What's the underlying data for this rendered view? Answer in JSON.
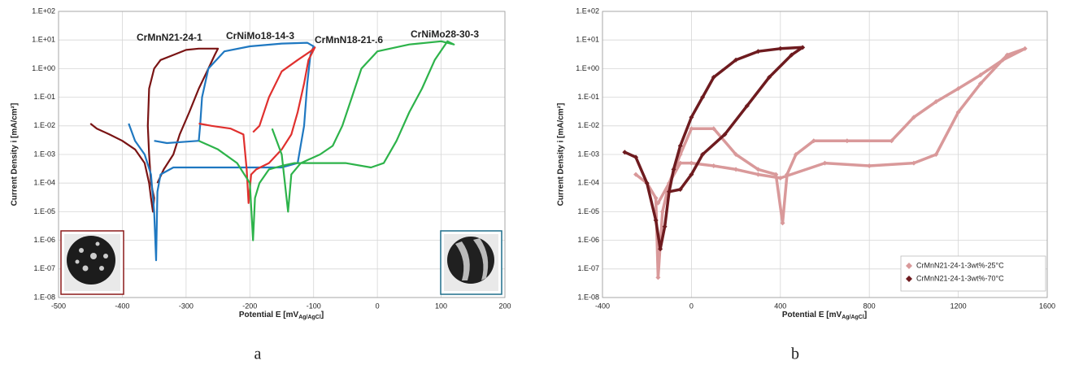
{
  "chart_data": [
    {
      "type": "line",
      "log_y": true,
      "grid": true,
      "caption": "a",
      "x_label": "Potential E [mV",
      "x_label_sub": "Ag/AgCl",
      "x_label_end": "]",
      "y_label": "Current Density i [mA/cm²]",
      "xlim": [
        -500,
        200
      ],
      "xticks": [
        -500,
        -400,
        -300,
        -200,
        -100,
        0,
        100,
        200
      ],
      "ylim": [
        1e-08,
        100
      ],
      "yticks": [
        {
          "value": 1e-08,
          "label": "1.E-08"
        },
        {
          "value": 1e-07,
          "label": "1.E-07"
        },
        {
          "value": 1e-06,
          "label": "1.E-06"
        },
        {
          "value": 1e-05,
          "label": "1.E-05"
        },
        {
          "value": 0.0001,
          "label": "1.E-04"
        },
        {
          "value": 0.001,
          "label": "1.E-03"
        },
        {
          "value": 0.01,
          "label": "1.E-02"
        },
        {
          "value": 0.1,
          "label": "1.E-01"
        },
        {
          "value": 1,
          "label": "1.E+00"
        },
        {
          "value": 10,
          "label": "1.E+01"
        },
        {
          "value": 100,
          "label": "1.E+02"
        }
      ],
      "series": [
        {
          "name": "CrMnN21-24-1",
          "color": "#7a1414",
          "x": [
            -450,
            -440,
            -420,
            -400,
            -380,
            -365,
            -358,
            -355,
            -352,
            -350,
            -355,
            -358,
            -360,
            -358,
            -350,
            -340,
            -320,
            -300,
            -280,
            -260,
            -250,
            -255,
            -265,
            -280,
            -295,
            -310,
            -320,
            -335,
            -345
          ],
          "values": [
            0.012,
            0.008,
            0.005,
            0.003,
            0.0015,
            0.0005,
            0.0001,
            3e-05,
            1e-05,
            3e-05,
            0.0001,
            0.001,
            0.01,
            0.2,
            1,
            2,
            3,
            4.5,
            5,
            5,
            5,
            3,
            1,
            0.2,
            0.03,
            0.005,
            0.001,
            0.0003,
            0.0001
          ]
        },
        {
          "name": "CrNiMo18-14-3",
          "color": "#1f78c1",
          "x": [
            -390,
            -380,
            -365,
            -355,
            -350,
            -347,
            -345,
            -340,
            -320,
            -250,
            -150,
            -125,
            -115,
            -110,
            -105,
            -100,
            -110,
            -150,
            -200,
            -240,
            -265,
            -275,
            -278,
            -280,
            -300,
            -330,
            -350
          ],
          "values": [
            0.012,
            0.003,
            0.001,
            0.0002,
            1e-05,
            2e-07,
            5e-05,
            0.0002,
            0.00035,
            0.00035,
            0.00035,
            0.0005,
            0.01,
            0.3,
            3,
            6,
            8,
            7.5,
            6,
            4,
            1,
            0.1,
            0.01,
            0.003,
            0.0028,
            0.0025,
            0.003
          ]
        },
        {
          "name": "CrMnN18-21-.6",
          "color": "#e0302e",
          "x": [
            -280,
            -260,
            -230,
            -210,
            -205,
            -202,
            -198,
            -190,
            -170,
            -150,
            -135,
            -125,
            -115,
            -108,
            -98,
            -105,
            -125,
            -150,
            -170,
            -185,
            -195
          ],
          "values": [
            0.012,
            0.01,
            0.008,
            0.005,
            0.0003,
            2e-05,
            0.0002,
            0.0003,
            0.0005,
            0.0015,
            0.005,
            0.03,
            0.3,
            2,
            5.5,
            4,
            2,
            0.8,
            0.1,
            0.01,
            0.006
          ]
        },
        {
          "name": "CrNiMo28-30-3",
          "color": "#2db34a",
          "x": [
            -280,
            -250,
            -220,
            -200,
            -195,
            -192,
            -185,
            -170,
            -150,
            -130,
            -50,
            -10,
            10,
            30,
            50,
            70,
            90,
            110,
            120,
            100,
            50,
            0,
            -25,
            -40,
            -55,
            -70,
            -90,
            -120,
            -135,
            -140,
            -150,
            -165
          ],
          "values": [
            0.003,
            0.0015,
            0.0005,
            0.0001,
            1e-06,
            3e-05,
            0.0001,
            0.0003,
            0.0004,
            0.0005,
            0.0005,
            0.00035,
            0.0005,
            0.003,
            0.03,
            0.2,
            2,
            9,
            7,
            9,
            7,
            4,
            1,
            0.1,
            0.01,
            0.002,
            0.001,
            0.0005,
            0.0002,
            1e-05,
            0.001,
            0.008
          ]
        }
      ]
    },
    {
      "type": "line",
      "log_y": true,
      "grid": true,
      "caption": "b",
      "marker": "diamond",
      "legend": "lower right",
      "x_label": "Potential E [mV",
      "x_label_sub": "Ag/AgCl",
      "x_label_end": "]",
      "y_label": "Current Density i [mA/cm²]",
      "xlim": [
        -400,
        1600
      ],
      "xticks": [
        -400,
        0,
        400,
        800,
        1200,
        1600
      ],
      "ylim": [
        1e-08,
        100
      ],
      "yticks": [
        {
          "value": 1e-08,
          "label": "1.E-08"
        },
        {
          "value": 1e-07,
          "label": "1.E-07"
        },
        {
          "value": 1e-06,
          "label": "1.E-06"
        },
        {
          "value": 1e-05,
          "label": "1.E-05"
        },
        {
          "value": 0.0001,
          "label": "1.E-04"
        },
        {
          "value": 0.001,
          "label": "1.E-03"
        },
        {
          "value": 0.01,
          "label": "1.E-02"
        },
        {
          "value": 0.1,
          "label": "1.E-01"
        },
        {
          "value": 1,
          "label": "1.E+00"
        },
        {
          "value": 10,
          "label": "1.E+01"
        },
        {
          "value": 100,
          "label": "1.E+02"
        }
      ],
      "series": [
        {
          "name": "CrMnN21-24-1-3wt%-25°C",
          "color": "#d9999a",
          "x": [
            -250,
            -200,
            -160,
            -150,
            -130,
            -100,
            -50,
            0,
            100,
            200,
            300,
            380,
            410,
            430,
            470,
            550,
            700,
            900,
            1000,
            1100,
            1200,
            1300,
            1400,
            1500,
            1420,
            1300,
            1200,
            1100,
            1000,
            800,
            600,
            400,
            300,
            200,
            100,
            0,
            -50,
            -100,
            -150
          ],
          "values": [
            0.0002,
            0.0001,
            3e-05,
            5e-08,
            1e-05,
            0.0001,
            0.001,
            0.008,
            0.008,
            0.001,
            0.0003,
            0.0002,
            4e-06,
            0.0002,
            0.001,
            0.003,
            0.003,
            0.003,
            0.02,
            0.07,
            0.2,
            0.6,
            2,
            5,
            3,
            0.3,
            0.03,
            0.001,
            0.0005,
            0.0004,
            0.0005,
            0.00015,
            0.0002,
            0.0003,
            0.0004,
            0.0005,
            0.0005,
            0.0001,
            2e-05
          ]
        },
        {
          "name": "CrMnN21-24-1-3wt%-70°C",
          "color": "#6e1b1f",
          "x": [
            -300,
            -250,
            -200,
            -160,
            -140,
            -120,
            -100,
            -80,
            -50,
            0,
            50,
            100,
            200,
            300,
            400,
            500,
            450,
            350,
            250,
            150,
            50,
            0,
            -50,
            -100
          ],
          "values": [
            0.0012,
            0.0008,
            0.0001,
            5e-06,
            5e-07,
            3e-06,
            5e-05,
            0.0003,
            0.002,
            0.02,
            0.1,
            0.5,
            2,
            4,
            5,
            5.5,
            3,
            0.5,
            0.05,
            0.005,
            0.001,
            0.0002,
            6e-05,
            5e-05
          ]
        }
      ]
    }
  ]
}
